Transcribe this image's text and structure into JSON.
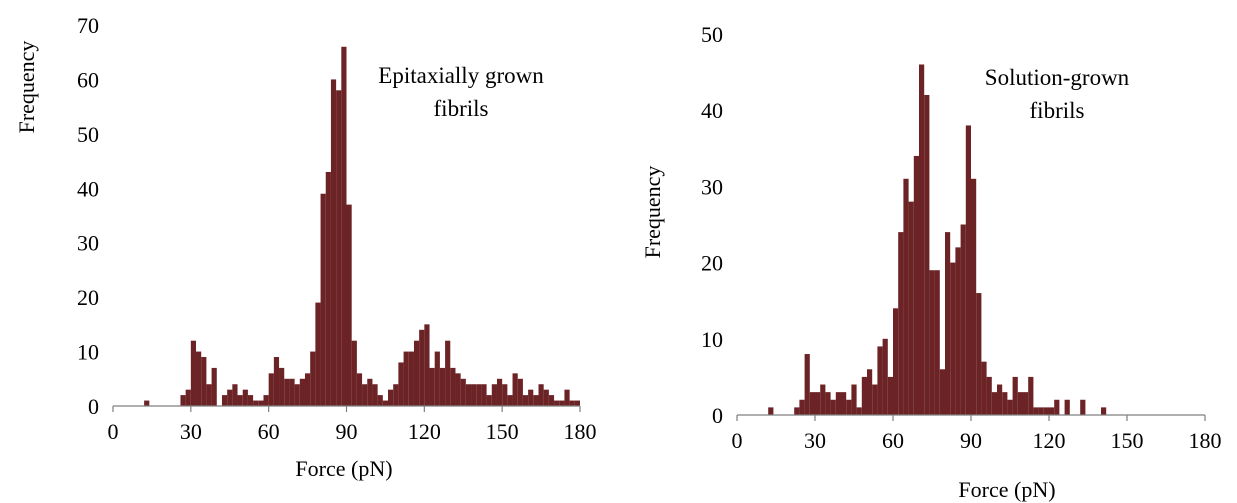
{
  "colors": {
    "bar": "#6b2326",
    "axis": "#7f7f7f"
  },
  "chart_data": [
    {
      "type": "bar",
      "ylabel": "Frequency",
      "xlabel": "Force (pN)",
      "annotation": [
        "Epitaxially grown",
        "fibrils"
      ],
      "xlim": [
        0,
        180
      ],
      "ylim": [
        0,
        70
      ],
      "x_ticks": [
        "0",
        "30",
        "60",
        "90",
        "120",
        "150",
        "180"
      ],
      "y_ticks": [
        "0",
        "10",
        "20",
        "30",
        "40",
        "50",
        "60",
        "70"
      ],
      "bin_width": 2,
      "bins": [
        [
          12,
          1
        ],
        [
          26,
          2
        ],
        [
          28,
          3
        ],
        [
          30,
          12
        ],
        [
          32,
          10
        ],
        [
          34,
          9
        ],
        [
          36,
          4
        ],
        [
          38,
          7
        ],
        [
          42,
          2
        ],
        [
          44,
          3
        ],
        [
          46,
          4
        ],
        [
          48,
          2
        ],
        [
          50,
          3
        ],
        [
          52,
          2
        ],
        [
          54,
          1
        ],
        [
          56,
          1
        ],
        [
          58,
          2
        ],
        [
          60,
          6
        ],
        [
          62,
          9
        ],
        [
          64,
          7
        ],
        [
          66,
          5
        ],
        [
          68,
          5
        ],
        [
          70,
          4
        ],
        [
          72,
          5
        ],
        [
          74,
          6
        ],
        [
          76,
          10
        ],
        [
          78,
          19
        ],
        [
          80,
          39
        ],
        [
          82,
          43
        ],
        [
          84,
          60
        ],
        [
          86,
          58
        ],
        [
          88,
          66
        ],
        [
          90,
          37
        ],
        [
          92,
          12
        ],
        [
          94,
          6
        ],
        [
          96,
          4
        ],
        [
          98,
          5
        ],
        [
          100,
          4
        ],
        [
          102,
          2
        ],
        [
          104,
          1
        ],
        [
          106,
          3
        ],
        [
          108,
          4
        ],
        [
          110,
          8
        ],
        [
          112,
          10
        ],
        [
          114,
          10
        ],
        [
          116,
          12
        ],
        [
          118,
          14
        ],
        [
          120,
          15
        ],
        [
          122,
          7
        ],
        [
          124,
          10
        ],
        [
          126,
          7
        ],
        [
          128,
          12
        ],
        [
          130,
          7
        ],
        [
          132,
          6
        ],
        [
          134,
          5
        ],
        [
          136,
          4
        ],
        [
          138,
          4
        ],
        [
          140,
          4
        ],
        [
          142,
          4
        ],
        [
          144,
          2
        ],
        [
          146,
          4
        ],
        [
          148,
          5
        ],
        [
          150,
          4
        ],
        [
          152,
          2
        ],
        [
          154,
          6
        ],
        [
          156,
          5
        ],
        [
          158,
          2
        ],
        [
          160,
          3
        ],
        [
          162,
          2
        ],
        [
          164,
          4
        ],
        [
          166,
          3
        ],
        [
          168,
          2
        ],
        [
          170,
          1
        ],
        [
          172,
          1
        ],
        [
          174,
          3
        ],
        [
          176,
          1
        ],
        [
          178,
          1
        ]
      ]
    },
    {
      "type": "bar",
      "ylabel": "Frequency",
      "xlabel": "Force (pN)",
      "annotation": [
        "Solution-grown",
        "fibrils"
      ],
      "xlim": [
        0,
        180
      ],
      "ylim": [
        0,
        50
      ],
      "x_ticks": [
        "0",
        "30",
        "60",
        "90",
        "120",
        "150",
        "180"
      ],
      "y_ticks": [
        "0",
        "10",
        "20",
        "30",
        "40",
        "50"
      ],
      "bin_width": 2,
      "bins": [
        [
          12,
          1
        ],
        [
          22,
          1
        ],
        [
          24,
          2
        ],
        [
          26,
          8
        ],
        [
          28,
          3
        ],
        [
          30,
          3
        ],
        [
          32,
          4
        ],
        [
          34,
          3
        ],
        [
          36,
          2
        ],
        [
          38,
          3
        ],
        [
          40,
          3
        ],
        [
          42,
          2
        ],
        [
          44,
          4
        ],
        [
          46,
          1
        ],
        [
          48,
          5
        ],
        [
          50,
          6
        ],
        [
          52,
          4
        ],
        [
          54,
          9
        ],
        [
          56,
          10
        ],
        [
          58,
          5
        ],
        [
          60,
          14
        ],
        [
          62,
          24
        ],
        [
          64,
          31
        ],
        [
          66,
          28
        ],
        [
          68,
          34
        ],
        [
          70,
          46
        ],
        [
          72,
          42
        ],
        [
          74,
          19
        ],
        [
          76,
          19
        ],
        [
          78,
          6
        ],
        [
          80,
          24
        ],
        [
          82,
          20
        ],
        [
          84,
          22
        ],
        [
          86,
          25
        ],
        [
          88,
          38
        ],
        [
          90,
          31
        ],
        [
          92,
          16
        ],
        [
          94,
          7
        ],
        [
          96,
          5
        ],
        [
          98,
          3
        ],
        [
          100,
          4
        ],
        [
          102,
          3
        ],
        [
          104,
          2
        ],
        [
          106,
          5
        ],
        [
          108,
          3
        ],
        [
          110,
          3
        ],
        [
          112,
          5
        ],
        [
          114,
          1
        ],
        [
          116,
          1
        ],
        [
          118,
          1
        ],
        [
          120,
          1
        ],
        [
          122,
          2
        ],
        [
          126,
          2
        ],
        [
          132,
          2
        ],
        [
          140,
          1
        ]
      ]
    }
  ]
}
